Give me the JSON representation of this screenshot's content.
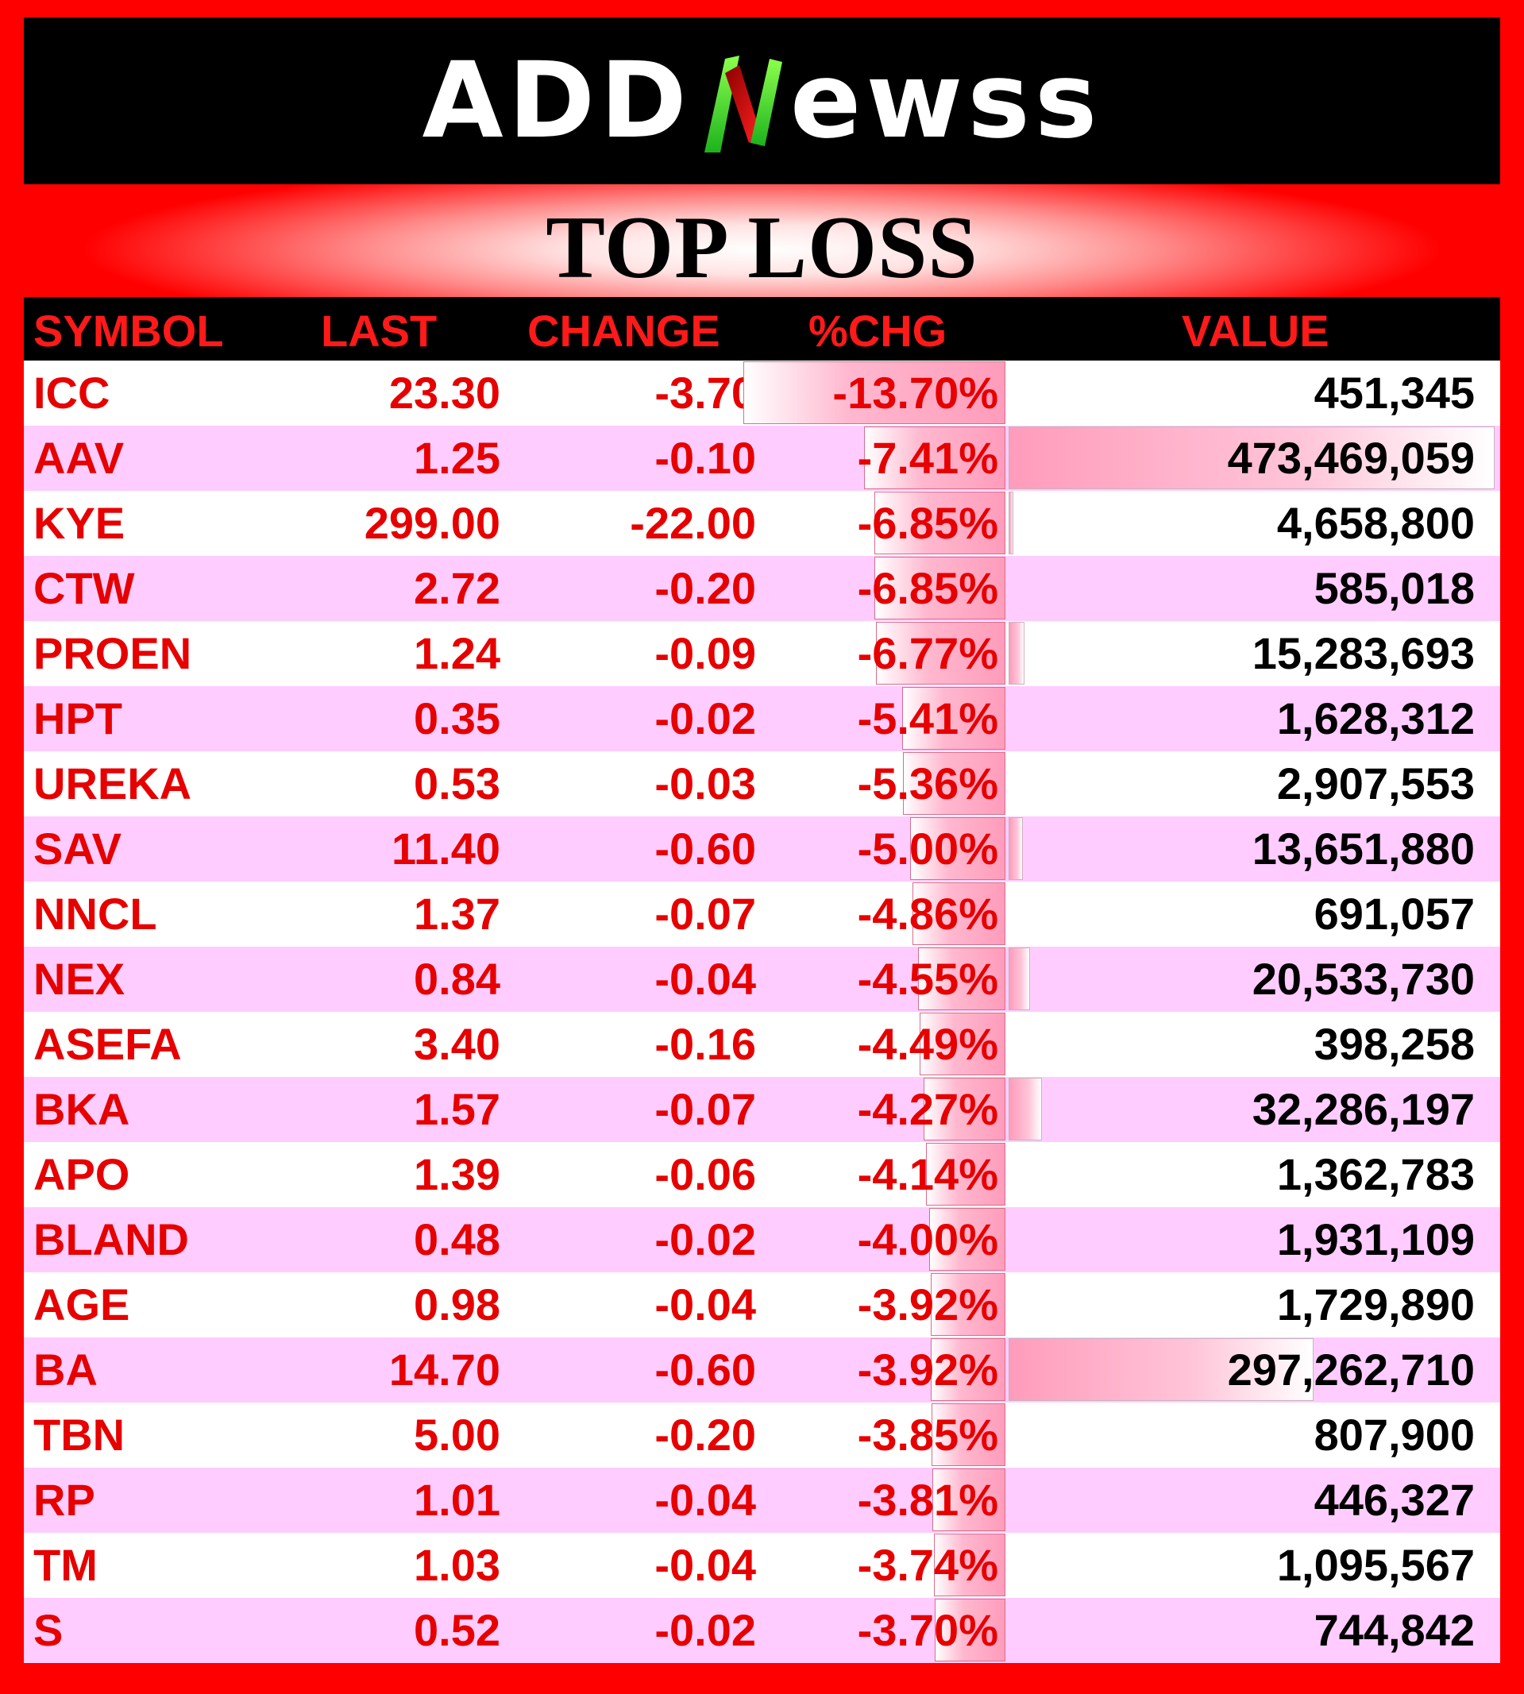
{
  "brand": {
    "logo_prefix": "ADD",
    "logo_suffix": "ewss"
  },
  "title": "TOP LOSS",
  "headers": {
    "symbol": "SYMBOL",
    "last": "LAST",
    "change": "CHANGE",
    "pct": "%CHG",
    "value": "VALUE"
  },
  "colors": {
    "background": "#ff0000",
    "header_bg": "#000000",
    "header_text": "#ff1a1a",
    "row_alt": "#ffccff",
    "loss_text": "#e60000"
  },
  "rows": [
    {
      "symbol": "ICC",
      "last": "23.30",
      "change": "-3.70",
      "pct": "-13.70%",
      "value": "451,345",
      "pct_num": 13.7,
      "value_num": 451345
    },
    {
      "symbol": "AAV",
      "last": "1.25",
      "change": "-0.10",
      "pct": "-7.41%",
      "value": "473,469,059",
      "pct_num": 7.41,
      "value_num": 473469059
    },
    {
      "symbol": "KYE",
      "last": "299.00",
      "change": "-22.00",
      "pct": "-6.85%",
      "value": "4,658,800",
      "pct_num": 6.85,
      "value_num": 4658800
    },
    {
      "symbol": "CTW",
      "last": "2.72",
      "change": "-0.20",
      "pct": "-6.85%",
      "value": "585,018",
      "pct_num": 6.85,
      "value_num": 585018
    },
    {
      "symbol": "PROEN",
      "last": "1.24",
      "change": "-0.09",
      "pct": "-6.77%",
      "value": "15,283,693",
      "pct_num": 6.77,
      "value_num": 15283693
    },
    {
      "symbol": "HPT",
      "last": "0.35",
      "change": "-0.02",
      "pct": "-5.41%",
      "value": "1,628,312",
      "pct_num": 5.41,
      "value_num": 1628312
    },
    {
      "symbol": "UREKA",
      "last": "0.53",
      "change": "-0.03",
      "pct": "-5.36%",
      "value": "2,907,553",
      "pct_num": 5.36,
      "value_num": 2907553
    },
    {
      "symbol": "SAV",
      "last": "11.40",
      "change": "-0.60",
      "pct": "-5.00%",
      "value": "13,651,880",
      "pct_num": 5.0,
      "value_num": 13651880
    },
    {
      "symbol": "NNCL",
      "last": "1.37",
      "change": "-0.07",
      "pct": "-4.86%",
      "value": "691,057",
      "pct_num": 4.86,
      "value_num": 691057
    },
    {
      "symbol": "NEX",
      "last": "0.84",
      "change": "-0.04",
      "pct": "-4.55%",
      "value": "20,533,730",
      "pct_num": 4.55,
      "value_num": 20533730
    },
    {
      "symbol": "ASEFA",
      "last": "3.40",
      "change": "-0.16",
      "pct": "-4.49%",
      "value": "398,258",
      "pct_num": 4.49,
      "value_num": 398258
    },
    {
      "symbol": "BKA",
      "last": "1.57",
      "change": "-0.07",
      "pct": "-4.27%",
      "value": "32,286,197",
      "pct_num": 4.27,
      "value_num": 32286197
    },
    {
      "symbol": "APO",
      "last": "1.39",
      "change": "-0.06",
      "pct": "-4.14%",
      "value": "1,362,783",
      "pct_num": 4.14,
      "value_num": 1362783
    },
    {
      "symbol": "BLAND",
      "last": "0.48",
      "change": "-0.02",
      "pct": "-4.00%",
      "value": "1,931,109",
      "pct_num": 4.0,
      "value_num": 1931109
    },
    {
      "symbol": "AGE",
      "last": "0.98",
      "change": "-0.04",
      "pct": "-3.92%",
      "value": "1,729,890",
      "pct_num": 3.92,
      "value_num": 1729890
    },
    {
      "symbol": "BA",
      "last": "14.70",
      "change": "-0.60",
      "pct": "-3.92%",
      "value": "297,262,710",
      "pct_num": 3.92,
      "value_num": 297262710
    },
    {
      "symbol": "TBN",
      "last": "5.00",
      "change": "-0.20",
      "pct": "-3.85%",
      "value": "807,900",
      "pct_num": 3.85,
      "value_num": 807900
    },
    {
      "symbol": "RP",
      "last": "1.01",
      "change": "-0.04",
      "pct": "-3.81%",
      "value": "446,327",
      "pct_num": 3.81,
      "value_num": 446327
    },
    {
      "symbol": "TM",
      "last": "1.03",
      "change": "-0.04",
      "pct": "-3.74%",
      "value": "1,095,567",
      "pct_num": 3.74,
      "value_num": 1095567
    },
    {
      "symbol": "S",
      "last": "0.52",
      "change": "-0.02",
      "pct": "-3.70%",
      "value": "744,842",
      "pct_num": 3.7,
      "value_num": 744842
    }
  ]
}
